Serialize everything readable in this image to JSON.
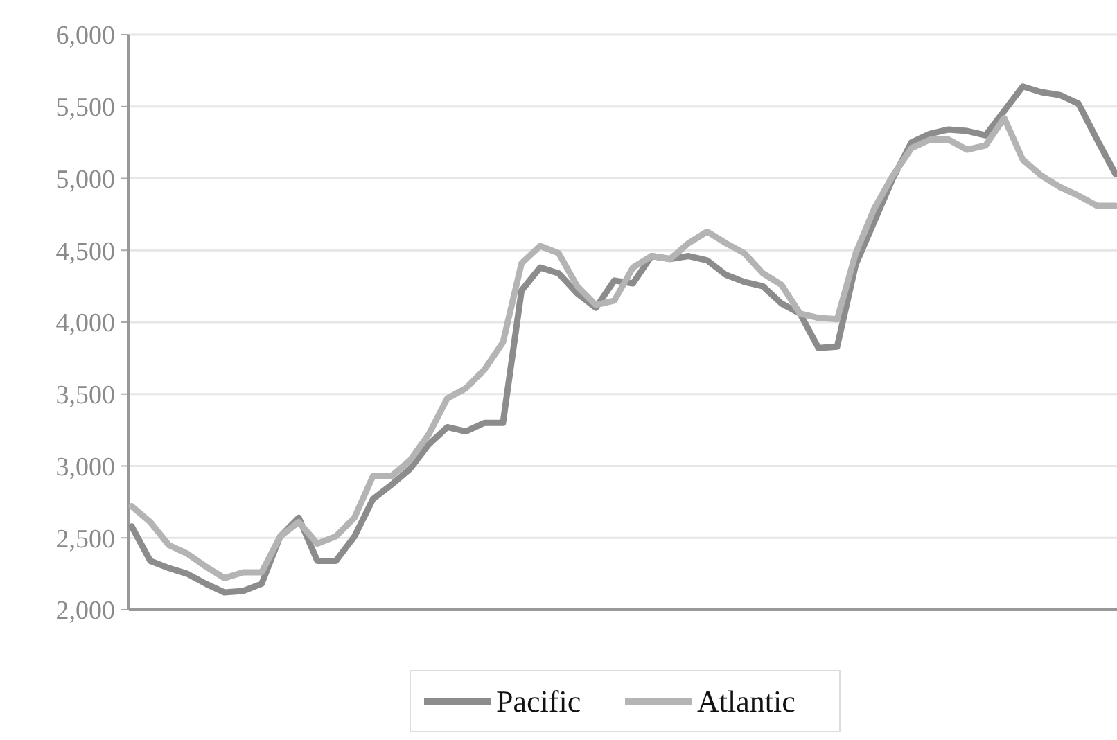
{
  "chart_data": {
    "type": "line",
    "categories": [
      null,
      null,
      null,
      null,
      null,
      null,
      null,
      null,
      null,
      null,
      null,
      null,
      null,
      null,
      null,
      null,
      null,
      null,
      null,
      null,
      null,
      null,
      null,
      null,
      null,
      null,
      null,
      null,
      null,
      null,
      null,
      null,
      null,
      null,
      null,
      null,
      null,
      null,
      null,
      null,
      null,
      null,
      null,
      null,
      null,
      null,
      null,
      null,
      null,
      null,
      null,
      null,
      null,
      null
    ],
    "series": [
      {
        "name": "Pacific",
        "color": "#8c8c8c",
        "values": [
          2580,
          2340,
          2290,
          2250,
          2180,
          2120,
          2130,
          2180,
          2510,
          2640,
          2340,
          2340,
          2510,
          2770,
          2870,
          2980,
          3150,
          3270,
          3240,
          3300,
          3300,
          4220,
          4380,
          4340,
          4200,
          4100,
          4290,
          4270,
          4460,
          4440,
          4460,
          4430,
          4330,
          4280,
          4250,
          4130,
          4060,
          3820,
          3830,
          4400,
          4700,
          5000,
          5250,
          5310,
          5340,
          5330,
          5300,
          5470,
          5640,
          5600,
          5580,
          5520,
          5270,
          5030
        ]
      },
      {
        "name": "Atlantic",
        "color": "#b4b4b4",
        "values": [
          2720,
          2610,
          2450,
          2390,
          2300,
          2220,
          2260,
          2260,
          2510,
          2610,
          2460,
          2510,
          2640,
          2930,
          2930,
          3040,
          3220,
          3470,
          3540,
          3670,
          3860,
          4410,
          4530,
          4480,
          4250,
          4120,
          4150,
          4380,
          4460,
          4440,
          4550,
          4630,
          4550,
          4480,
          4340,
          4260,
          4060,
          4030,
          4020,
          4480,
          4790,
          5020,
          5210,
          5270,
          5270,
          5200,
          5230,
          5420,
          5130,
          5020,
          4940,
          4880,
          4810,
          4810
        ]
      }
    ],
    "ylim": [
      2000,
      6000
    ],
    "yticks": [
      {
        "value": 2000,
        "label": "2,000"
      },
      {
        "value": 2500,
        "label": "2,500"
      },
      {
        "value": 3000,
        "label": "3,000"
      },
      {
        "value": 3500,
        "label": "3,500"
      },
      {
        "value": 4000,
        "label": "4,000"
      },
      {
        "value": 4500,
        "label": "4,500"
      },
      {
        "value": 5000,
        "label": "5,000"
      },
      {
        "value": 5500,
        "label": "5,500"
      },
      {
        "value": 6000,
        "label": "6,000"
      }
    ],
    "grid": "y",
    "legend": "bottom",
    "marker": "none",
    "line_style": "solid"
  }
}
